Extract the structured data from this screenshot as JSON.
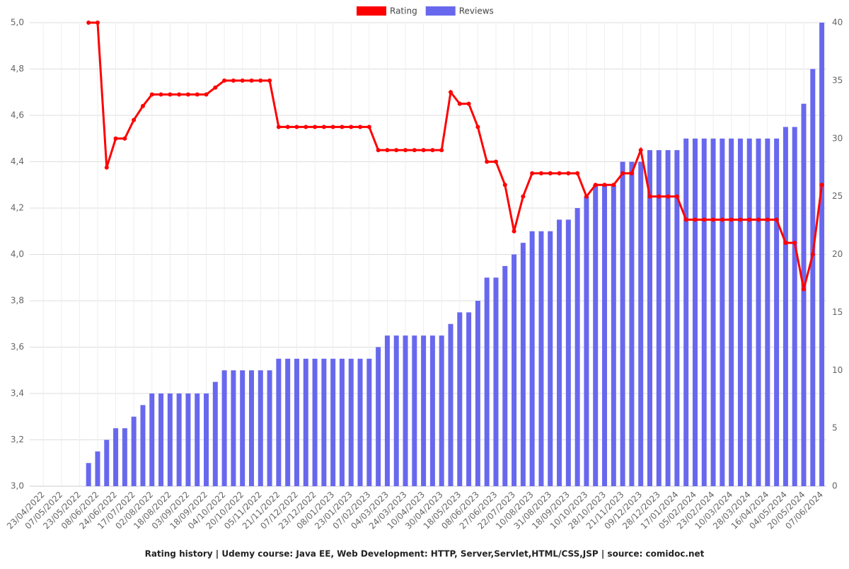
{
  "chart_data": {
    "type": "bar-line",
    "title": "Rating history | Udemy course: Java EE, Web Development: HTTP, Server,Servlet,HTML/CSS,JSP | source: comidoc.net",
    "legend_position": "top",
    "grid": true,
    "categories": [
      null,
      "23/04/2022",
      null,
      "07/05/2022",
      null,
      "23/05/2022",
      null,
      "08/06/2022",
      null,
      "24/06/2022",
      null,
      "17/07/2022",
      null,
      "02/08/2022",
      null,
      "18/08/2022",
      null,
      "03/09/2022",
      null,
      "18/09/2022",
      null,
      "04/10/2022",
      null,
      "20/10/2022",
      null,
      "05/11/2022",
      null,
      "21/11/2022",
      null,
      "07/12/2022",
      null,
      "23/12/2022",
      null,
      "08/01/2023",
      null,
      "23/01/2023",
      null,
      "07/02/2023",
      null,
      "04/03/2023",
      null,
      "24/03/2023",
      null,
      "10/04/2023",
      null,
      "30/04/2023",
      null,
      "18/05/2023",
      null,
      "08/06/2023",
      null,
      "27/06/2023",
      null,
      "22/07/2023",
      null,
      "10/08/2023",
      null,
      "31/08/2023",
      null,
      "18/09/2023",
      null,
      "10/10/2023",
      null,
      "28/10/2023",
      null,
      "21/11/2023",
      null,
      "09/12/2023",
      null,
      "28/12/2023",
      null,
      "17/01/2024",
      null,
      "05/02/2024",
      null,
      "23/02/2024",
      null,
      "10/03/2024",
      null,
      "28/03/2024",
      null,
      "16/04/2024",
      null,
      "04/05/2024",
      null,
      "20/05/2024",
      null,
      "07/06/2024"
    ],
    "series": [
      {
        "name": "Rating",
        "type": "line",
        "color": "#ff0000",
        "values": [
          null,
          null,
          null,
          null,
          null,
          null,
          5.0,
          5.0,
          4.375,
          4.5,
          4.5,
          4.58,
          4.64,
          4.69,
          4.69,
          4.69,
          4.69,
          4.69,
          4.69,
          4.69,
          4.72,
          4.75,
          4.75,
          4.75,
          4.75,
          4.75,
          4.75,
          4.55,
          4.55,
          4.55,
          4.55,
          4.55,
          4.55,
          4.55,
          4.55,
          4.55,
          4.55,
          4.55,
          4.45,
          4.45,
          4.45,
          4.45,
          4.45,
          4.45,
          4.45,
          4.45,
          4.7,
          4.65,
          4.65,
          4.55,
          4.4,
          4.4,
          4.3,
          4.1,
          4.25,
          4.35,
          4.35,
          4.35,
          4.35,
          4.35,
          4.35,
          4.25,
          4.3,
          4.3,
          4.3,
          4.35,
          4.35,
          4.45,
          4.25,
          4.25,
          4.25,
          4.25,
          4.15,
          4.15,
          4.15,
          4.15,
          4.15,
          4.15,
          4.15,
          4.15,
          4.15,
          4.15,
          4.15,
          4.05,
          4.05,
          3.85,
          4.0,
          4.3
        ]
      },
      {
        "name": "Reviews",
        "type": "bar",
        "axis": "y2",
        "color": "#6868ee",
        "values": [
          null,
          null,
          null,
          null,
          null,
          null,
          2,
          3,
          4,
          5,
          5,
          6,
          7,
          8,
          8,
          8,
          8,
          8,
          8,
          8,
          9,
          10,
          10,
          10,
          10,
          10,
          10,
          11,
          11,
          11,
          11,
          11,
          11,
          11,
          11,
          11,
          11,
          11,
          12,
          13,
          13,
          13,
          13,
          13,
          13,
          13,
          14,
          15,
          15,
          16,
          18,
          18,
          19,
          20,
          21,
          22,
          22,
          22,
          23,
          23,
          24,
          25,
          26,
          26,
          26,
          28,
          28,
          28,
          29,
          29,
          29,
          29,
          30,
          30,
          30,
          30,
          30,
          30,
          30,
          30,
          30,
          30,
          30,
          31,
          31,
          33,
          36,
          40
        ]
      }
    ],
    "ylim": [
      3.0,
      5.0
    ],
    "yticks": [
      {
        "value": 3.0,
        "label": "3,0"
      },
      {
        "value": 3.2,
        "label": "3,2"
      },
      {
        "value": 3.4,
        "label": "3,4"
      },
      {
        "value": 3.6,
        "label": "3,6"
      },
      {
        "value": 3.8,
        "label": "3,8"
      },
      {
        "value": 4.0,
        "label": "4,0"
      },
      {
        "value": 4.2,
        "label": "4,2"
      },
      {
        "value": 4.4,
        "label": "4,4"
      },
      {
        "value": 4.6,
        "label": "4,6"
      },
      {
        "value": 4.8,
        "label": "4,8"
      },
      {
        "value": 5.0,
        "label": "5,0"
      }
    ],
    "y2lim": [
      0,
      40
    ],
    "y2ticks": [
      0,
      5,
      10,
      15,
      20,
      25,
      30,
      35,
      40
    ]
  }
}
